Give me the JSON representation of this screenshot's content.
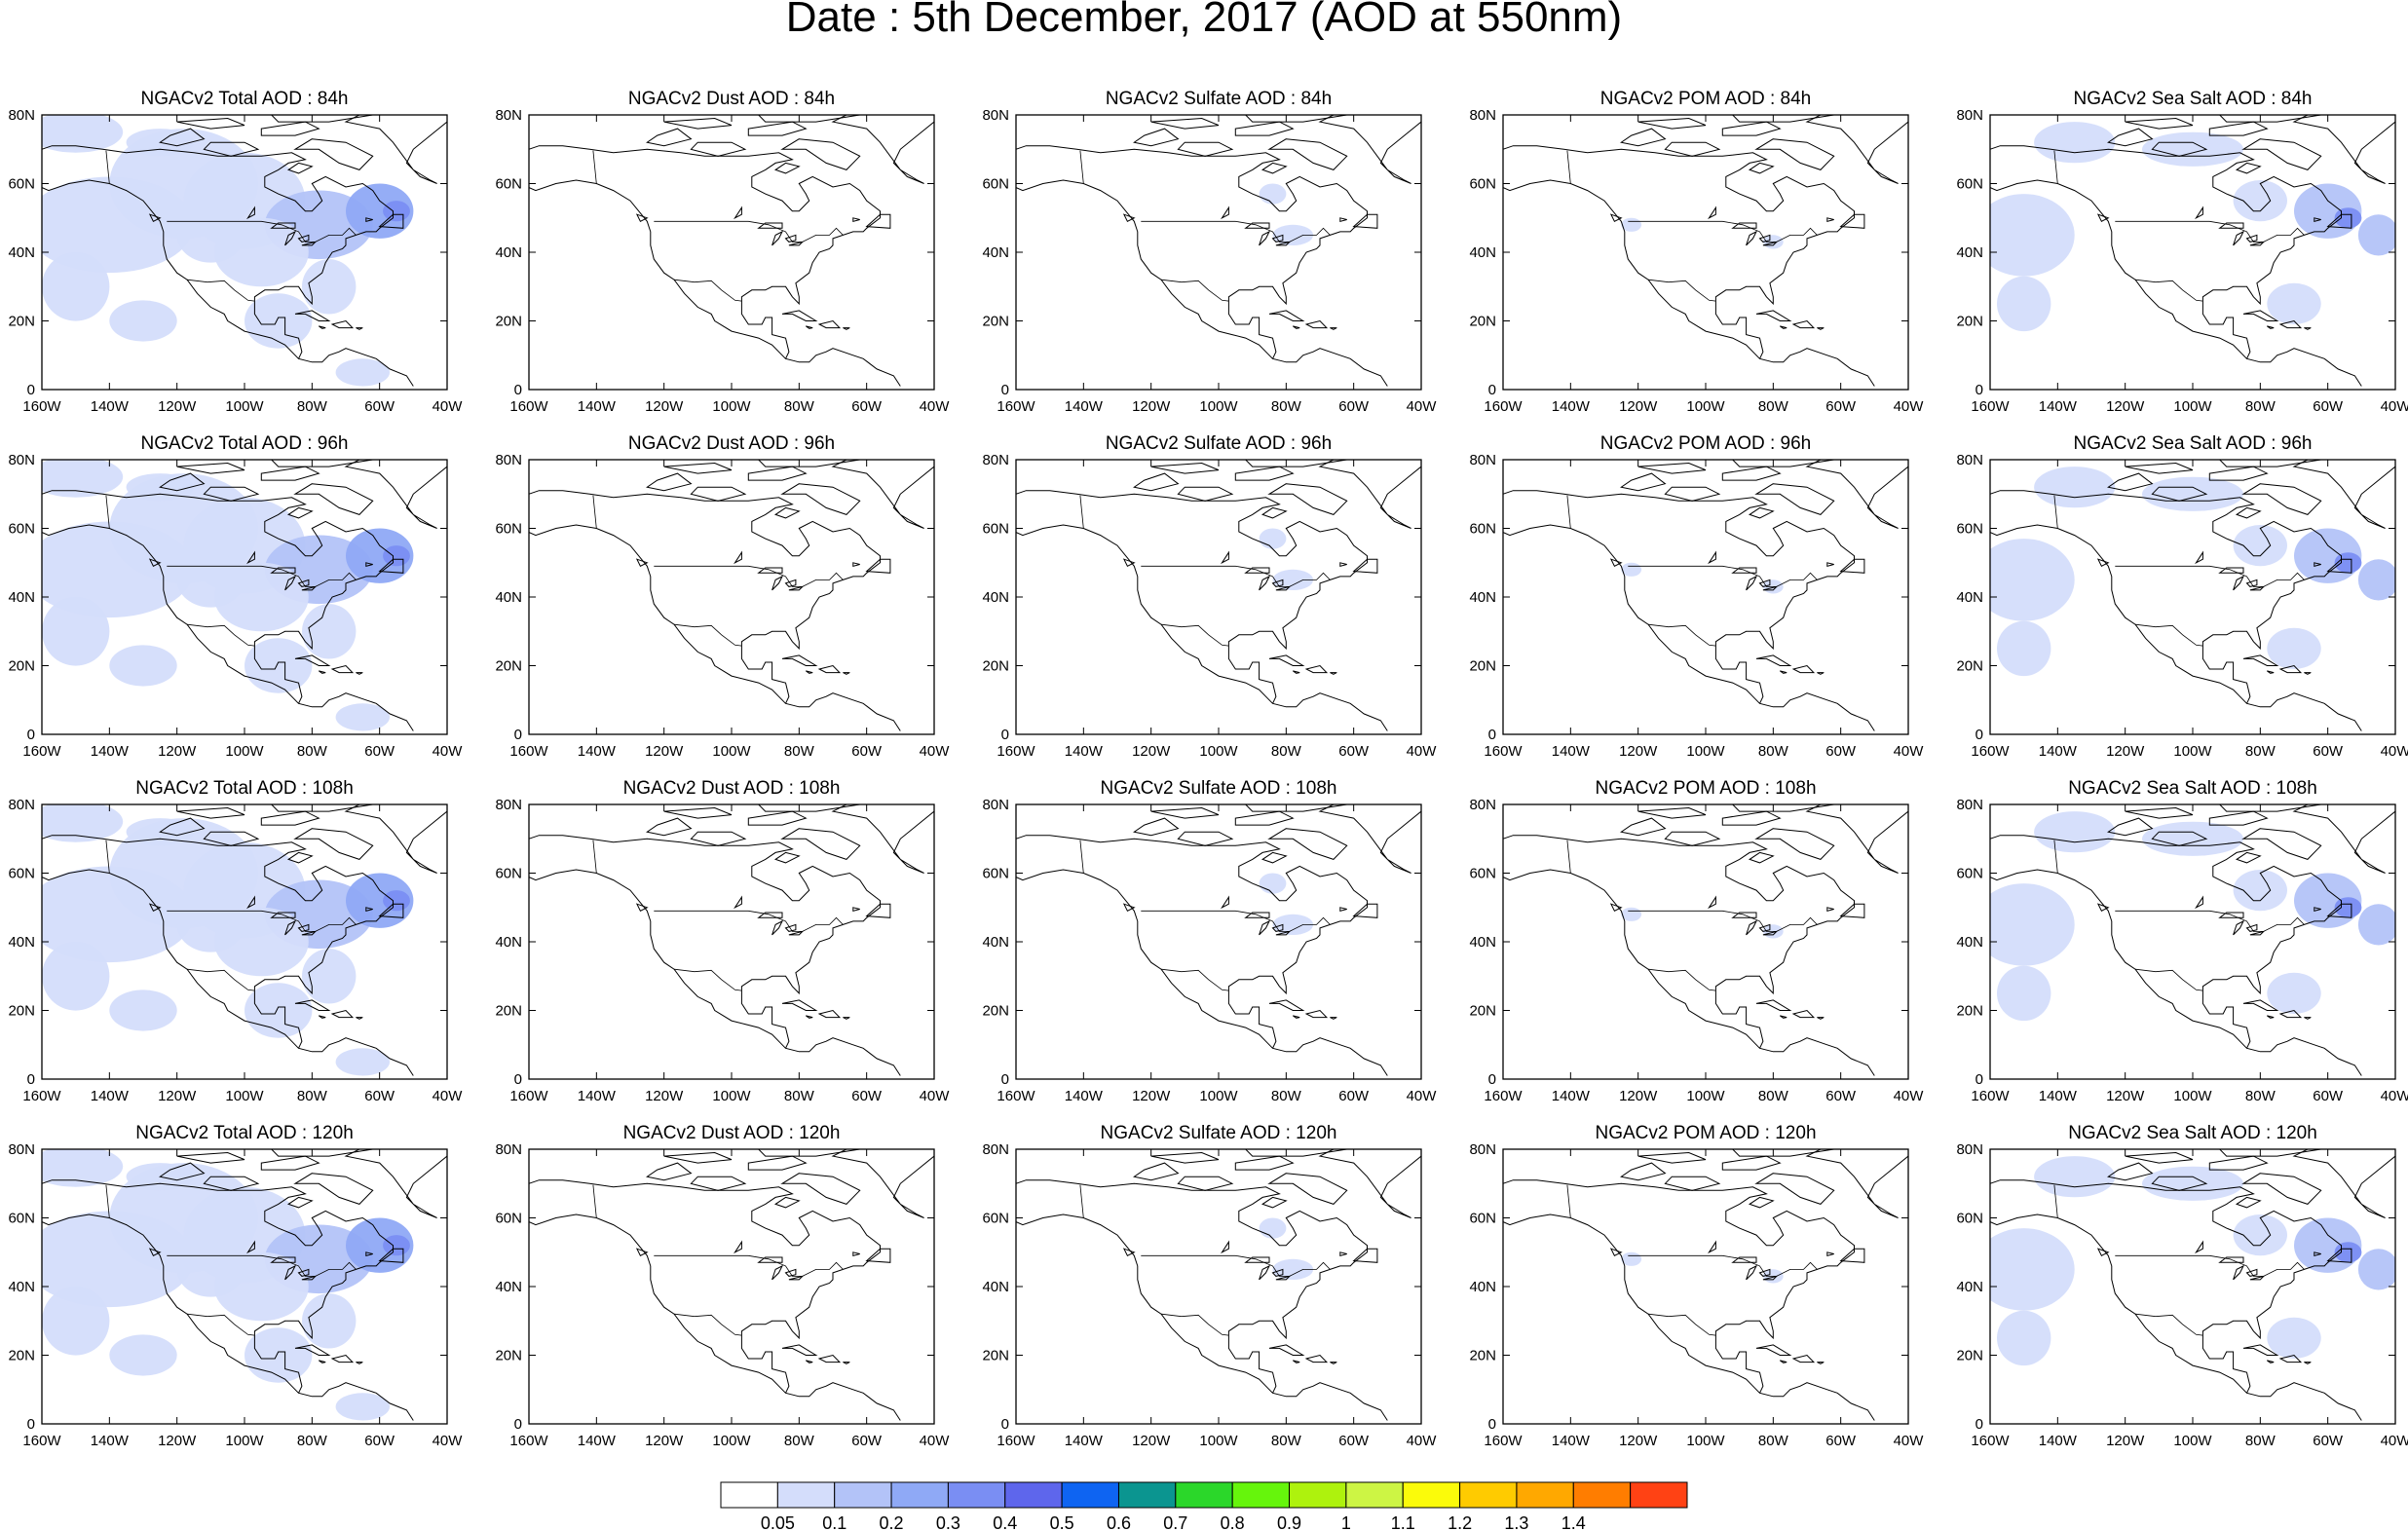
{
  "page_title": "Date : 5th December, 2017 (AOD at 550nm)",
  "chart_data": {
    "type": "heatmap",
    "columns": [
      "Total",
      "Dust",
      "Sulfate",
      "POM",
      "Sea Salt"
    ],
    "forecast_hours": [
      "84h",
      "96h",
      "108h",
      "120h"
    ],
    "panels": [
      {
        "title": "NGACv2 Total AOD : 84h",
        "species": "Total",
        "hour": "84h",
        "max_level": 0.4
      },
      {
        "title": "NGACv2 Dust AOD : 84h",
        "species": "Dust",
        "hour": "84h",
        "max_level": 0.05
      },
      {
        "title": "NGACv2 Sulfate AOD : 84h",
        "species": "Sulfate",
        "hour": "84h",
        "max_level": 0.1
      },
      {
        "title": "NGACv2 POM AOD : 84h",
        "species": "POM",
        "hour": "84h",
        "max_level": 0.1
      },
      {
        "title": "NGACv2 Sea Salt AOD : 84h",
        "species": "Sea Salt",
        "hour": "84h",
        "max_level": 0.5
      },
      {
        "title": "NGACv2 Total AOD : 96h",
        "species": "Total",
        "hour": "96h",
        "max_level": 0.3
      },
      {
        "title": "NGACv2 Dust AOD : 96h",
        "species": "Dust",
        "hour": "96h",
        "max_level": 0.05
      },
      {
        "title": "NGACv2 Sulfate AOD : 96h",
        "species": "Sulfate",
        "hour": "96h",
        "max_level": 0.1
      },
      {
        "title": "NGACv2 POM AOD : 96h",
        "species": "POM",
        "hour": "96h",
        "max_level": 0.1
      },
      {
        "title": "NGACv2 Sea Salt AOD : 96h",
        "species": "Sea Salt",
        "hour": "96h",
        "max_level": 0.3
      },
      {
        "title": "NGACv2 Total AOD : 108h",
        "species": "Total",
        "hour": "108h",
        "max_level": 0.3
      },
      {
        "title": "NGACv2 Dust AOD : 108h",
        "species": "Dust",
        "hour": "108h",
        "max_level": 0.05
      },
      {
        "title": "NGACv2 Sulfate AOD : 108h",
        "species": "Sulfate",
        "hour": "108h",
        "max_level": 0.1
      },
      {
        "title": "NGACv2 POM AOD : 108h",
        "species": "POM",
        "hour": "108h",
        "max_level": 0.1
      },
      {
        "title": "NGACv2 Sea Salt AOD : 108h",
        "species": "Sea Salt",
        "hour": "108h",
        "max_level": 0.3
      },
      {
        "title": "NGACv2 Total AOD : 120h",
        "species": "Total",
        "hour": "120h",
        "max_level": 0.4
      },
      {
        "title": "NGACv2 Dust AOD : 120h",
        "species": "Dust",
        "hour": "120h",
        "max_level": 0.05
      },
      {
        "title": "NGACv2 Sulfate AOD : 120h",
        "species": "Sulfate",
        "hour": "120h",
        "max_level": 0.1
      },
      {
        "title": "NGACv2 POM AOD : 120h",
        "species": "POM",
        "hour": "120h",
        "max_level": 0.1
      },
      {
        "title": "NGACv2 Sea Salt  AOD : 120h",
        "species": "Sea Salt",
        "hour": "120h",
        "max_level": 0.4
      }
    ],
    "lon_ticks": [
      "160W",
      "140W",
      "120W",
      "100W",
      "80W",
      "60W",
      "40W"
    ],
    "lat_ticks": [
      "0",
      "20N",
      "40N",
      "60N",
      "80N"
    ],
    "xlim": [
      -160,
      -40
    ],
    "ylim": [
      0,
      80
    ],
    "colorbar": {
      "labels": [
        "0.05",
        "0.1",
        "0.2",
        "0.3",
        "0.4",
        "0.5",
        "0.6",
        "0.7",
        "0.8",
        "0.9",
        "1",
        "1.1",
        "1.2",
        "1.3",
        "1.4"
      ],
      "colors": [
        "#ffffff",
        "#d4ddfb",
        "#b3c3f8",
        "#8fa9f6",
        "#7a8ef3",
        "#5e66ec",
        "#0e64f2",
        "#0b9590",
        "#2bd72a",
        "#66f50c",
        "#aef20d",
        "#cdf544",
        "#fbfb0a",
        "#ffcb00",
        "#ffa800",
        "#ff7d00",
        "#ff4214"
      ]
    }
  }
}
